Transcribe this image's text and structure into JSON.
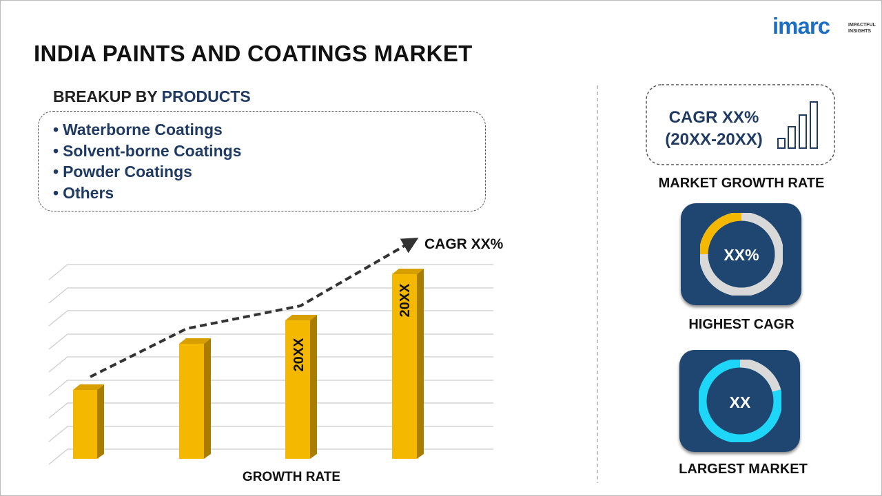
{
  "logo": {
    "name": "imarc",
    "tagline": [
      "IMPACTFUL",
      "INSIGHTS"
    ]
  },
  "title": "INDIA PAINTS AND COATINGS MARKET",
  "breakup": {
    "label": "BREAKUP BY",
    "dimension": "PRODUCTS",
    "items": [
      "Waterborne Coatings",
      "Solvent-borne Coatings",
      "Powder Coatings",
      "Others"
    ]
  },
  "growth_chart": {
    "bar_labels": [
      "20XX",
      "20XX"
    ],
    "trend_label": "CAGR XX%",
    "axis_label": "GROWTH RATE"
  },
  "market_growth": {
    "value": "CAGR XX%",
    "period": "(20XX-20XX)",
    "label": "MARKET GROWTH RATE"
  },
  "highest_cagr": {
    "value": "XX%",
    "label": "HIGHEST CAGR"
  },
  "largest_market": {
    "value": "XX",
    "label": "LARGEST MARKET"
  }
}
